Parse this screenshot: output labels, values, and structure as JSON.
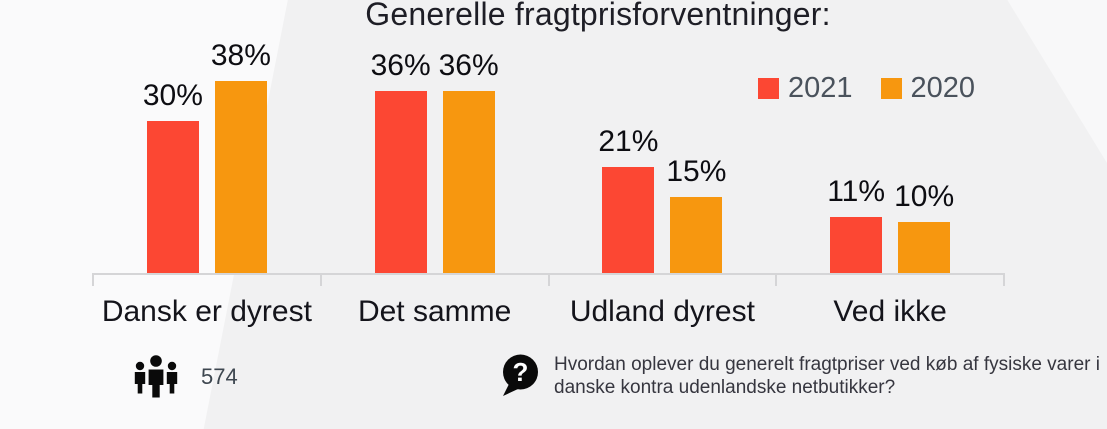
{
  "title": "Generelle fragtprisforventninger:",
  "chart_data": {
    "type": "bar",
    "title": "Generelle fragtprisforventninger:",
    "categories": [
      "Dansk er dyrest",
      "Det samme",
      "Udland dyrest",
      "Ved ikke"
    ],
    "series": [
      {
        "name": "2021",
        "color": "#fc4733",
        "values": [
          30,
          36,
          21,
          11
        ]
      },
      {
        "name": "2020",
        "color": "#f7970f",
        "values": [
          38,
          36,
          15,
          10
        ]
      }
    ],
    "value_suffix": "%",
    "ylim": [
      0,
      40
    ],
    "grid": false,
    "legend_position": "top-right",
    "xlabel": "",
    "ylabel": ""
  },
  "colors": {
    "background": "#f1f1f2",
    "accent_red": "#fc4733",
    "accent_orange": "#f7970f",
    "axis": "#d5d5d7",
    "title_text": "#1e1e26",
    "legend_text": "#4a525c"
  },
  "footer": {
    "respondents_count": "574",
    "question": "Hvordan oplever du generelt fragtpriser ved køb af fysiske varer i danske kontra udenlandske netbutikker?"
  },
  "icons": {
    "respondents": "people-icon",
    "question": "question-bubble-icon"
  }
}
